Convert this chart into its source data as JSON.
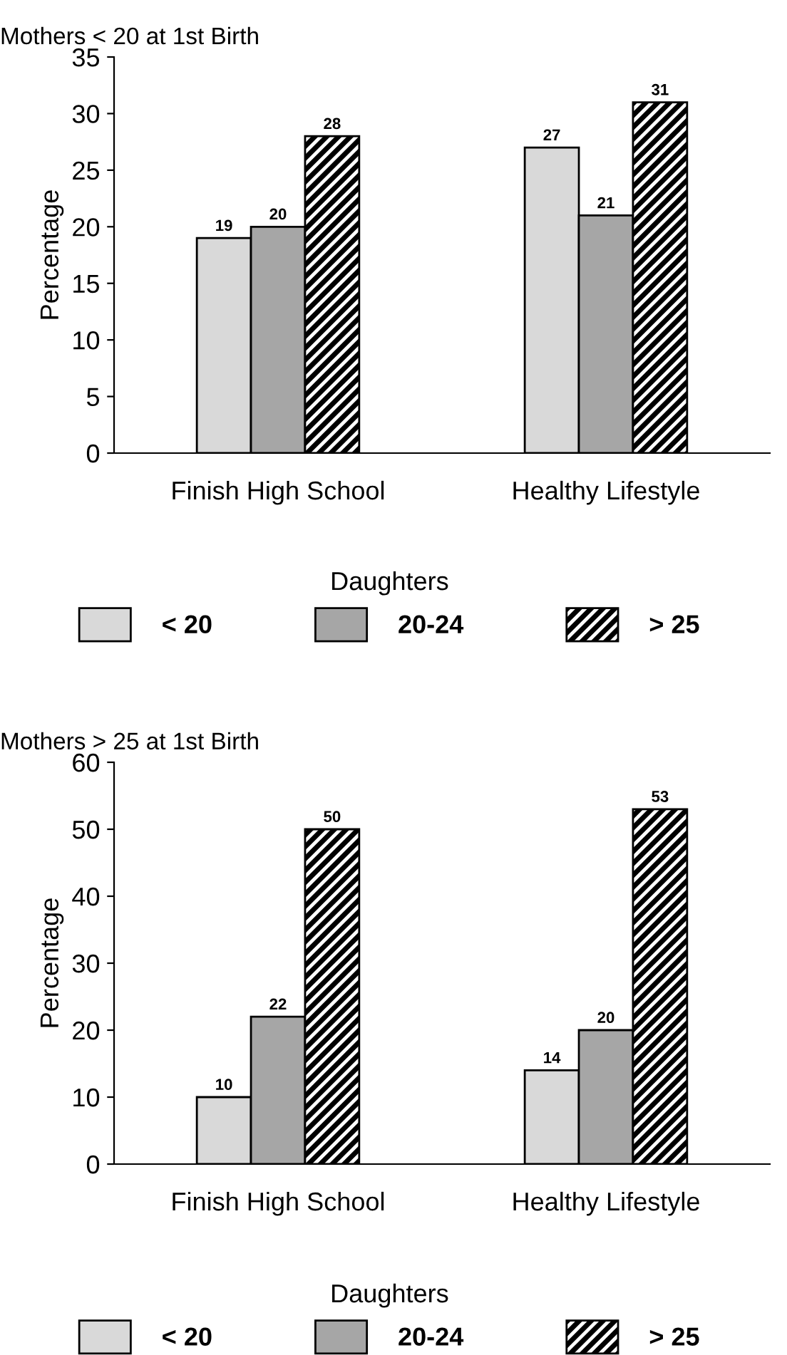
{
  "chart_data": [
    {
      "type": "bar",
      "title": "Mothers < 20 at 1st Birth",
      "ylabel": "Percentage",
      "legend_title": "Daughters",
      "categories": [
        "Finish High School",
        "Healthy Lifestyle"
      ],
      "series": [
        {
          "name": "< 20",
          "color": "#d9d9d9",
          "values": [
            19,
            27
          ]
        },
        {
          "name": "20-24",
          "color": "#a6a6a6",
          "values": [
            20,
            21
          ]
        },
        {
          "name": "> 25",
          "color": "#000000",
          "values": [
            28,
            31
          ]
        }
      ],
      "ylim": [
        0,
        35
      ],
      "yticks": [
        0,
        5,
        10,
        15,
        20,
        25,
        30,
        35
      ],
      "data_labels": true,
      "grid": false,
      "legend": "bottom"
    },
    {
      "type": "bar",
      "title": "Mothers > 25 at 1st Birth",
      "ylabel": "Percentage",
      "legend_title": "Daughters",
      "categories": [
        "Finish High School",
        "Healthy Lifestyle"
      ],
      "series": [
        {
          "name": "< 20",
          "color": "#d9d9d9",
          "values": [
            10,
            14
          ]
        },
        {
          "name": "20-24",
          "color": "#a6a6a6",
          "values": [
            22,
            20
          ]
        },
        {
          "name": "> 25",
          "color": "#000000",
          "values": [
            50,
            53
          ]
        }
      ],
      "ylim": [
        0,
        60
      ],
      "yticks": [
        0,
        10,
        20,
        30,
        40,
        50,
        60
      ],
      "data_labels": true,
      "grid": false,
      "legend": "bottom"
    }
  ]
}
